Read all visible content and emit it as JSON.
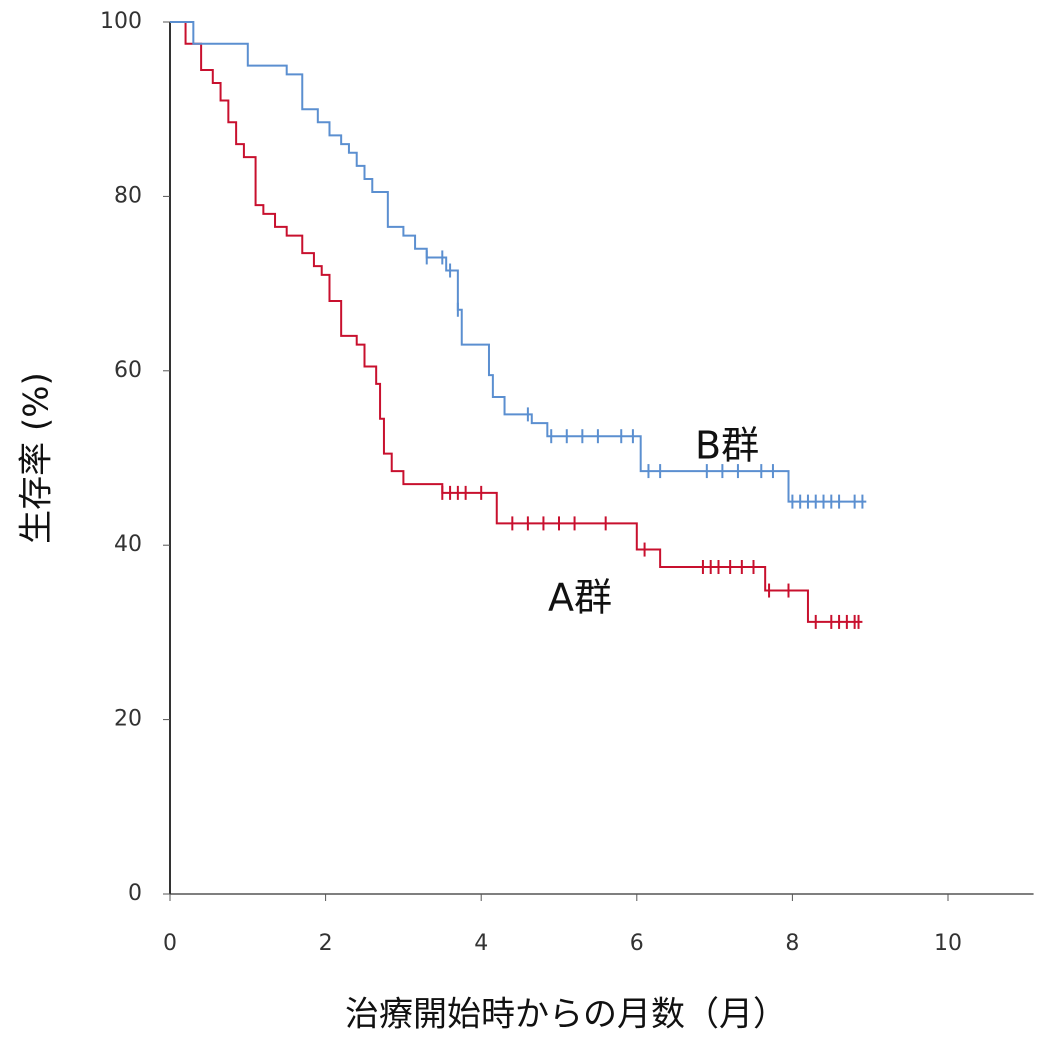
{
  "chart_data": {
    "type": "step",
    "xlabel": "治療開始時からの月数（月）",
    "ylabel": "生存率 (%)",
    "xlim": [
      0,
      11.1
    ],
    "ylim": [
      0,
      100
    ],
    "xticks": [
      0,
      2,
      4,
      6,
      8,
      10
    ],
    "yticks": [
      0,
      20,
      40,
      60,
      80,
      100
    ],
    "series": [
      {
        "name": "A群",
        "color": "#c8102e",
        "x": [
          0,
          0.2,
          0.4,
          0.55,
          0.65,
          0.75,
          0.85,
          0.95,
          1.1,
          1.2,
          1.35,
          1.5,
          1.7,
          1.85,
          1.95,
          2.05,
          2.2,
          2.4,
          2.5,
          2.65,
          2.7,
          2.75,
          2.85,
          3.0,
          3.5,
          4.2,
          6.0,
          6.3,
          7.65,
          8.2,
          8.9
        ],
        "values": [
          100,
          97.5,
          94.5,
          93,
          91,
          88.5,
          86,
          84.5,
          79,
          78,
          76.5,
          75.5,
          73.5,
          72,
          71,
          68,
          64,
          63,
          60.5,
          58.5,
          54.5,
          50.5,
          48.5,
          47,
          46,
          42.5,
          39.5,
          37.5,
          34.8,
          31.2,
          31.2
        ],
        "censored_x": [
          3.5,
          3.6,
          3.7,
          3.8,
          4.0,
          4.4,
          4.6,
          4.8,
          5.0,
          5.2,
          5.6,
          6.1,
          6.85,
          6.95,
          7.05,
          7.2,
          7.35,
          7.5,
          7.7,
          7.95,
          8.3,
          8.5,
          8.6,
          8.7,
          8.8,
          8.85
        ],
        "censored_values": [
          46,
          46,
          46,
          46,
          46,
          42.5,
          42.5,
          42.5,
          42.5,
          42.5,
          42.5,
          39.5,
          37.5,
          37.5,
          37.5,
          37.5,
          37.5,
          37.5,
          34.8,
          34.8,
          31.2,
          31.2,
          31.2,
          31.2,
          31.2,
          31.2
        ]
      },
      {
        "name": "B群",
        "color": "#5b8fd0",
        "x": [
          0,
          0.3,
          1.0,
          1.5,
          1.7,
          1.9,
          2.05,
          2.2,
          2.3,
          2.4,
          2.5,
          2.6,
          2.8,
          3.0,
          3.15,
          3.3,
          3.55,
          3.7,
          3.75,
          4.1,
          4.15,
          4.3,
          4.65,
          4.85,
          6.05,
          7.95,
          8.95
        ],
        "values": [
          100,
          97.5,
          95,
          94,
          90,
          88.5,
          87,
          86,
          85,
          83.5,
          82,
          80.5,
          76.5,
          75.5,
          74,
          73,
          71.5,
          67,
          63,
          59.5,
          57,
          55,
          54,
          52.5,
          48.5,
          45,
          45
        ],
        "censored_x": [
          3.3,
          3.5,
          3.6,
          3.7,
          4.6,
          4.9,
          5.1,
          5.3,
          5.5,
          5.8,
          5.95,
          6.15,
          6.3,
          6.9,
          7.1,
          7.3,
          7.6,
          7.75,
          8.0,
          8.1,
          8.2,
          8.3,
          8.4,
          8.5,
          8.6,
          8.8,
          8.9
        ],
        "censored_values": [
          73,
          73,
          71.5,
          67,
          55,
          52.5,
          52.5,
          52.5,
          52.5,
          52.5,
          52.5,
          48.5,
          48.5,
          48.5,
          48.5,
          48.5,
          48.5,
          48.5,
          45,
          45,
          45,
          45,
          45,
          45,
          45,
          45,
          45
        ]
      }
    ]
  }
}
